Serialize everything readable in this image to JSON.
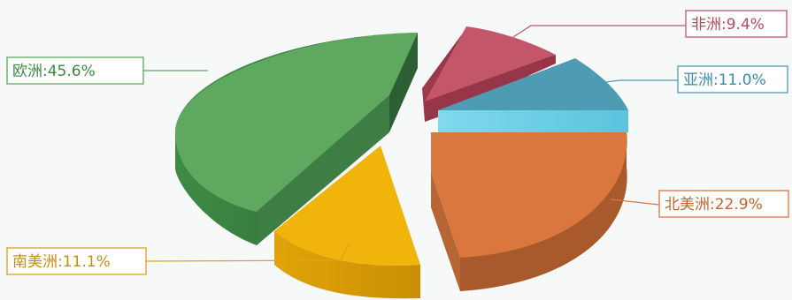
{
  "chart_data": {
    "type": "pie",
    "title": "",
    "three_d": true,
    "exploded": true,
    "slices": [
      {
        "label": "欧洲",
        "value": 45.6,
        "text": "欧洲:45.6%",
        "color": "#5fa85f"
      },
      {
        "label": "非洲",
        "value": 9.4,
        "text": "非洲:9.4%",
        "color": "#c4566a"
      },
      {
        "label": "亚洲",
        "value": 11.0,
        "text": "亚洲:11.0%",
        "color": "#4e9bb4"
      },
      {
        "label": "北美洲",
        "value": 22.9,
        "text": "北美洲:22.9%",
        "color": "#d9773f"
      },
      {
        "label": "南美洲",
        "value": 11.1,
        "text": "南美洲:11.1%",
        "color": "#f0b40a"
      }
    ]
  }
}
